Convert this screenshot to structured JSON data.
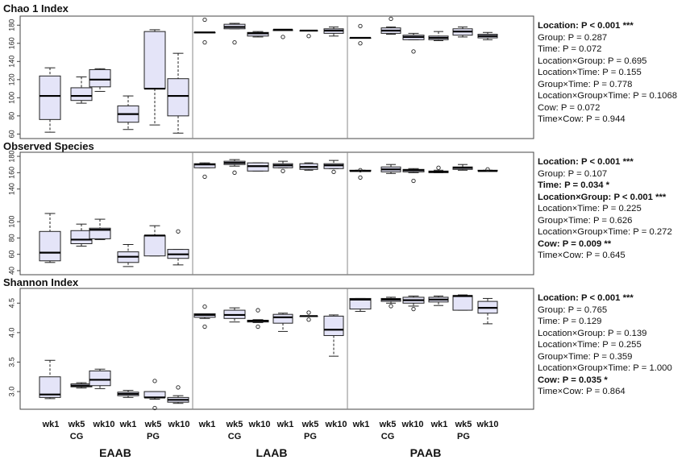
{
  "chart_data": {
    "type": "boxplot",
    "group_labels": [
      "EAAB",
      "LAAB",
      "PAAB"
    ],
    "tick_labels": [
      "wk1",
      "wk5",
      "wk10",
      "wk1",
      "wk5",
      "wk10"
    ],
    "sublabels": [
      "CG",
      "PG"
    ],
    "panels": [
      {
        "title": "Chao 1 Index",
        "ylim": [
          55,
          190
        ],
        "yticks": [
          "60",
          "80",
          "100",
          "120",
          "140",
          "160",
          "180"
        ],
        "yvalues": [
          60,
          80,
          100,
          120,
          140,
          160,
          180
        ],
        "boxes": [
          {
            "min": 62,
            "q1": 76,
            "med": 102,
            "q3": 124,
            "max": 133,
            "out": []
          },
          {
            "min": 94,
            "q1": 97,
            "med": 102,
            "q3": 111,
            "max": 123,
            "out": []
          },
          {
            "min": 107,
            "q1": 112,
            "med": 120,
            "q3": 131,
            "max": 132,
            "out": []
          },
          {
            "min": 65,
            "q1": 73,
            "med": 82,
            "q3": 91,
            "max": 102,
            "out": []
          },
          {
            "min": 70,
            "q1": 110,
            "med": 110,
            "q3": 173,
            "max": 175,
            "out": []
          },
          {
            "min": 61,
            "q1": 80,
            "med": 102,
            "q3": 121,
            "max": 149,
            "out": []
          },
          {
            "min": 172,
            "q1": 172,
            "med": 172,
            "q3": 172,
            "max": 172,
            "out": [
              186,
              161
            ]
          },
          {
            "min": 176,
            "q1": 176,
            "med": 178,
            "q3": 181,
            "max": 182,
            "out": [
              161
            ]
          },
          {
            "min": 167,
            "q1": 168,
            "med": 171,
            "q3": 172,
            "max": 173,
            "out": []
          },
          {
            "min": 174,
            "q1": 174,
            "med": 175,
            "q3": 175,
            "max": 175,
            "out": [
              167
            ]
          },
          {
            "min": 174,
            "q1": 174,
            "med": 174,
            "q3": 174,
            "max": 174,
            "out": [
              168
            ]
          },
          {
            "min": 168,
            "q1": 171,
            "med": 174,
            "q3": 176,
            "max": 178,
            "out": []
          },
          {
            "min": 166,
            "q1": 166,
            "med": 166,
            "q3": 166,
            "max": 166,
            "out": [
              179,
              160
            ]
          },
          {
            "min": 170,
            "q1": 171,
            "med": 174,
            "q3": 177,
            "max": 178,
            "out": [
              187
            ]
          },
          {
            "min": 164,
            "q1": 164,
            "med": 167,
            "q3": 169,
            "max": 171,
            "out": [
              151
            ]
          },
          {
            "min": 163,
            "q1": 164,
            "med": 166,
            "q3": 168,
            "max": 173,
            "out": []
          },
          {
            "min": 167,
            "q1": 169,
            "med": 173,
            "q3": 176,
            "max": 178,
            "out": []
          },
          {
            "min": 164,
            "q1": 166,
            "med": 168,
            "q3": 170,
            "max": 172,
            "out": []
          }
        ],
        "stats": [
          {
            "text": "Location: P < 0.001 ***",
            "bold": true
          },
          {
            "text": "Group: P = 0.287",
            "bold": false
          },
          {
            "text": "Time: P = 0.072",
            "bold": false
          },
          {
            "text": "Location×Group: P = 0.695",
            "bold": false
          },
          {
            "text": "Location×Time: P = 0.155",
            "bold": false
          },
          {
            "text": "Group×Time: P = 0.778",
            "bold": false
          },
          {
            "text": "Location×Group×Time: P = 0.1068",
            "bold": false
          },
          {
            "text": "Cow: P = 0.072",
            "bold": false
          },
          {
            "text": "Time×Cow: P = 0.944",
            "bold": false
          }
        ]
      },
      {
        "title": "Observed Species",
        "ylim": [
          35,
          185
        ],
        "yticks": [
          "40",
          "60",
          "80",
          "100",
          "140",
          "160",
          "180"
        ],
        "yvalues": [
          40,
          60,
          80,
          100,
          140,
          160,
          180
        ],
        "boxes": [
          {
            "min": 50,
            "q1": 52,
            "med": 62,
            "q3": 88,
            "max": 110,
            "out": []
          },
          {
            "min": 70,
            "q1": 73,
            "med": 78,
            "q3": 89,
            "max": 97,
            "out": []
          },
          {
            "min": 78,
            "q1": 79,
            "med": 90,
            "q3": 92,
            "max": 103,
            "out": []
          },
          {
            "min": 45,
            "q1": 50,
            "med": 57,
            "q3": 63,
            "max": 72,
            "out": []
          },
          {
            "min": 58,
            "q1": 58,
            "med": 83,
            "q3": 83,
            "max": 95,
            "out": []
          },
          {
            "min": 47,
            "q1": 55,
            "med": 60,
            "q3": 66,
            "max": 66,
            "out": [
              88
            ]
          },
          {
            "min": 166,
            "q1": 166,
            "med": 170,
            "q3": 171,
            "max": 172,
            "out": [
              155
            ]
          },
          {
            "min": 168,
            "q1": 170,
            "med": 172,
            "q3": 174,
            "max": 176,
            "out": [
              160
            ]
          },
          {
            "min": 162,
            "q1": 162,
            "med": 168,
            "q3": 172,
            "max": 172,
            "out": []
          },
          {
            "min": 166,
            "q1": 166,
            "med": 169,
            "q3": 171,
            "max": 174,
            "out": [
              162
            ]
          },
          {
            "min": 163,
            "q1": 164,
            "med": 167,
            "q3": 171,
            "max": 172,
            "out": []
          },
          {
            "min": 165,
            "q1": 165,
            "med": 169,
            "q3": 171,
            "max": 175,
            "out": [
              161
            ]
          },
          {
            "min": 162,
            "q1": 162,
            "med": 162,
            "q3": 163,
            "max": 163,
            "out": [
              163,
              154
            ]
          },
          {
            "min": 159,
            "q1": 161,
            "med": 164,
            "q3": 167,
            "max": 170,
            "out": []
          },
          {
            "min": 160,
            "q1": 161,
            "med": 163,
            "q3": 164,
            "max": 165,
            "out": [
              150
            ]
          },
          {
            "min": 160,
            "q1": 160,
            "med": 161,
            "q3": 162,
            "max": 163,
            "out": [
              166
            ]
          },
          {
            "min": 163,
            "q1": 164,
            "med": 166,
            "q3": 167,
            "max": 170,
            "out": []
          },
          {
            "min": 162,
            "q1": 162,
            "med": 162,
            "q3": 163,
            "max": 163,
            "out": [
              164
            ]
          }
        ],
        "stats": [
          {
            "text": "Location: P < 0.001 ***",
            "bold": true
          },
          {
            "text": "Group: P = 0.107",
            "bold": false
          },
          {
            "text": "Time: P = 0.034 *",
            "bold": true
          },
          {
            "text": "Location×Group: P < 0.001 ***",
            "bold": true
          },
          {
            "text": "Location×Time: P = 0.225",
            "bold": false
          },
          {
            "text": "Group×Time: P = 0.626",
            "bold": false
          },
          {
            "text": "Location×Group×Time: P = 0.272",
            "bold": false
          },
          {
            "text": "Cow: P = 0.009 **",
            "bold": true
          },
          {
            "text": "Time×Cow: P = 0.645",
            "bold": false
          }
        ]
      },
      {
        "title": "Shannon Index",
        "ylim": [
          2.7,
          4.75
        ],
        "yticks": [
          "3.0",
          "3.5",
          "4.0",
          "4.5"
        ],
        "yvalues": [
          3.0,
          3.5,
          4.0,
          4.5
        ],
        "boxes": [
          {
            "min": 2.88,
            "q1": 2.9,
            "med": 2.95,
            "q3": 3.25,
            "max": 3.53,
            "out": []
          },
          {
            "min": 3.06,
            "q1": 3.08,
            "med": 3.1,
            "q3": 3.13,
            "max": 3.15,
            "out": []
          },
          {
            "min": 3.05,
            "q1": 3.1,
            "med": 3.2,
            "q3": 3.35,
            "max": 3.38,
            "out": []
          },
          {
            "min": 2.9,
            "q1": 2.93,
            "med": 2.96,
            "q3": 2.99,
            "max": 3.02,
            "out": []
          },
          {
            "min": 2.87,
            "q1": 2.9,
            "med": 2.9,
            "q3": 3.0,
            "max": 3.0,
            "out": [
              3.18,
              2.72
            ]
          },
          {
            "min": 2.8,
            "q1": 2.82,
            "med": 2.86,
            "q3": 2.9,
            "max": 2.93,
            "out": [
              3.07
            ]
          },
          {
            "min": 4.24,
            "q1": 4.26,
            "med": 4.3,
            "q3": 4.32,
            "max": 4.32,
            "out": [
              4.44,
              4.1
            ]
          },
          {
            "min": 4.18,
            "q1": 4.24,
            "med": 4.3,
            "q3": 4.38,
            "max": 4.42,
            "out": []
          },
          {
            "min": 4.17,
            "q1": 4.18,
            "med": 4.2,
            "q3": 4.21,
            "max": 4.22,
            "out": [
              4.38,
              4.1
            ]
          },
          {
            "min": 4.02,
            "q1": 4.16,
            "med": 4.26,
            "q3": 4.31,
            "max": 4.33,
            "out": []
          },
          {
            "min": 4.28,
            "q1": 4.28,
            "med": 4.28,
            "q3": 4.28,
            "max": 4.28,
            "out": [
              4.34,
              4.22
            ]
          },
          {
            "min": 3.6,
            "q1": 3.95,
            "med": 4.05,
            "q3": 4.28,
            "max": 4.3,
            "out": []
          },
          {
            "min": 4.36,
            "q1": 4.4,
            "med": 4.56,
            "q3": 4.58,
            "max": 4.58,
            "out": []
          },
          {
            "min": 4.5,
            "q1": 4.53,
            "med": 4.56,
            "q3": 4.58,
            "max": 4.6,
            "out": [
              4.45
            ]
          },
          {
            "min": 4.45,
            "q1": 4.5,
            "med": 4.55,
            "q3": 4.6,
            "max": 4.62,
            "out": [
              4.4
            ]
          },
          {
            "min": 4.46,
            "q1": 4.52,
            "med": 4.56,
            "q3": 4.6,
            "max": 4.62,
            "out": []
          },
          {
            "min": 4.38,
            "q1": 4.38,
            "med": 4.62,
            "q3": 4.63,
            "max": 4.64,
            "out": []
          },
          {
            "min": 4.15,
            "q1": 4.33,
            "med": 4.42,
            "q3": 4.53,
            "max": 4.58,
            "out": []
          }
        ],
        "stats": [
          {
            "text": "Location: P < 0.001 ***",
            "bold": true
          },
          {
            "text": "Group: P = 0.765",
            "bold": false
          },
          {
            "text": "Time: P = 0.129",
            "bold": false
          },
          {
            "text": "Location×Group: P = 0.139",
            "bold": false
          },
          {
            "text": "Location×Time: P = 0.255",
            "bold": false
          },
          {
            "text": "Group×Time: P = 0.359",
            "bold": false
          },
          {
            "text": "Location×Group×Time: P = 1.000",
            "bold": false
          },
          {
            "text": "Cow: P = 0.035 *",
            "bold": true
          },
          {
            "text": "Time×Cow: P = 0.864",
            "bold": false
          }
        ]
      }
    ]
  },
  "colors": {
    "box_fill": "#e4e4f8",
    "stroke": "#222222",
    "frame": "#444444",
    "divider": "#8a8a8a"
  }
}
